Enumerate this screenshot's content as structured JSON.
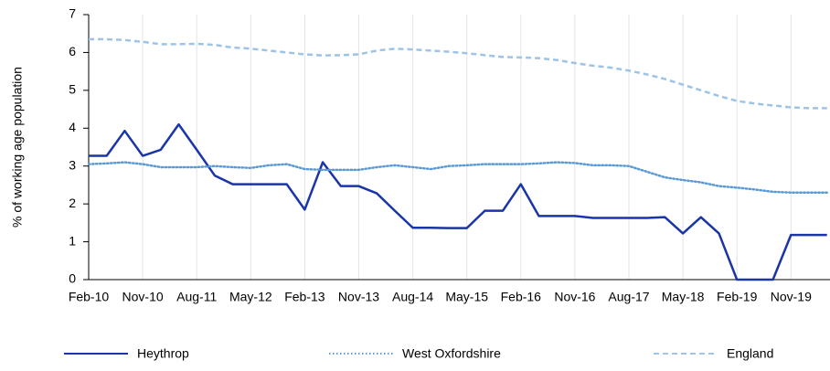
{
  "chart_data": {
    "type": "line",
    "ylabel": "% of working age population",
    "categories": [
      "Feb-10",
      null,
      null,
      "Nov-10",
      null,
      null,
      "Aug-11",
      null,
      null,
      "May-12",
      null,
      null,
      "Feb-13",
      null,
      null,
      "Nov-13",
      null,
      null,
      "Aug-14",
      null,
      null,
      "May-15",
      null,
      null,
      "Feb-16",
      null,
      null,
      "Nov-16",
      null,
      null,
      "Aug-17",
      null,
      null,
      "May-18",
      null,
      null,
      "Feb-19",
      null,
      null,
      "Nov-19",
      null,
      null
    ],
    "series": [
      {
        "name": "Heythrop",
        "color": "#1a35a8",
        "style": "solid",
        "values": [
          3.27,
          3.27,
          3.93,
          3.27,
          3.43,
          4.1,
          3.43,
          2.75,
          2.52,
          2.52,
          2.52,
          2.52,
          1.85,
          3.1,
          2.47,
          2.47,
          2.28,
          1.82,
          1.37,
          1.37,
          1.36,
          1.36,
          1.82,
          1.82,
          2.52,
          1.68,
          1.68,
          1.68,
          1.63,
          1.63,
          1.63,
          1.63,
          1.65,
          1.22,
          1.65,
          1.22,
          0,
          0,
          0,
          1.18,
          1.18,
          1.18
        ]
      },
      {
        "name": "West Oxfordshire",
        "color": "#5b9bd5",
        "style": "dotted",
        "values": [
          3.05,
          3.07,
          3.1,
          3.05,
          2.97,
          2.97,
          2.97,
          3.0,
          2.97,
          2.95,
          3.02,
          3.05,
          2.92,
          2.9,
          2.9,
          2.9,
          2.97,
          3.02,
          2.97,
          2.92,
          3.0,
          3.02,
          3.05,
          3.05,
          3.05,
          3.07,
          3.1,
          3.08,
          3.02,
          3.02,
          3.0,
          2.85,
          2.7,
          2.63,
          2.57,
          2.47,
          2.43,
          2.38,
          2.32,
          2.3,
          2.3,
          2.3
        ]
      },
      {
        "name": "England",
        "color": "#9dc3e6",
        "style": "dashed",
        "values": [
          6.35,
          6.35,
          6.33,
          6.28,
          6.22,
          6.22,
          6.23,
          6.2,
          6.13,
          6.1,
          6.05,
          6.0,
          5.95,
          5.92,
          5.93,
          5.95,
          6.05,
          6.1,
          6.08,
          6.05,
          6.02,
          5.98,
          5.93,
          5.88,
          5.87,
          5.85,
          5.8,
          5.72,
          5.65,
          5.6,
          5.52,
          5.42,
          5.3,
          5.15,
          5.0,
          4.85,
          4.72,
          4.65,
          4.6,
          4.55,
          4.53,
          4.53
        ]
      }
    ],
    "ylim": [
      0,
      7
    ],
    "yticks": [
      0,
      1,
      2,
      3,
      4,
      5,
      6,
      7
    ],
    "grid": "x",
    "legend": "bottom"
  }
}
